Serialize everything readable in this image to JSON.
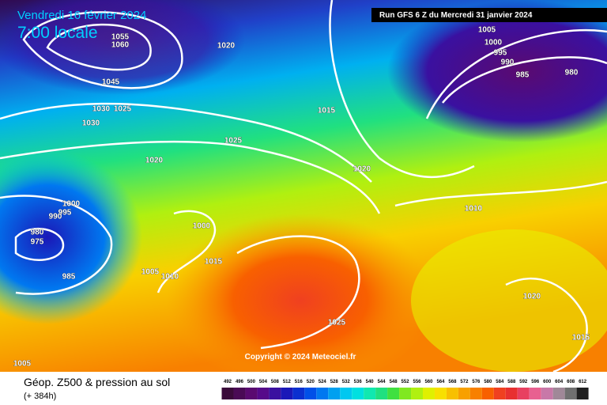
{
  "header": {
    "title": "Vendredi 16 février 2024",
    "subtitle": "7:00 locale",
    "run": "Run GFS 6 Z du Mercredi 31 janvier 2024"
  },
  "isobars": [
    1020,
    1055,
    1060,
    1045,
    1030,
    1025,
    1030,
    1015,
    1025,
    1020,
    1020,
    1000,
    995,
    990,
    980,
    975,
    985,
    1000,
    1005,
    1010,
    1015,
    1005,
    1000,
    995,
    990,
    985,
    980,
    1010,
    1020,
    1025,
    1015,
    1005
  ],
  "copyright": "Copyright © 2024 Meteociel.fr",
  "footer": {
    "title": "Géop. Z500 & pression au sol",
    "lead": "(+ 384h)"
  },
  "colorbar": {
    "labels": [
      492,
      496,
      500,
      504,
      508,
      512,
      516,
      520,
      524,
      528,
      532,
      536,
      540,
      544,
      548,
      552,
      556,
      560,
      564,
      568,
      572,
      576,
      580,
      584,
      588,
      592,
      596,
      600,
      604,
      608,
      612
    ],
    "colors": [
      "#3a0a3a",
      "#4a0a55",
      "#5a0a70",
      "#560a8a",
      "#3a10a0",
      "#1a18b8",
      "#0a30d0",
      "#0050e8",
      "#0078f0",
      "#00a0f0",
      "#00c8f0",
      "#00e0e0",
      "#10e8b0",
      "#20e080",
      "#40e040",
      "#80e820",
      "#b0f010",
      "#e0f000",
      "#f8e000",
      "#f8c000",
      "#f8a000",
      "#f88000",
      "#f86000",
      "#f04020",
      "#e83030",
      "#e84060",
      "#e86090",
      "#c878a8",
      "#a08898",
      "#707070",
      "#202020"
    ]
  }
}
